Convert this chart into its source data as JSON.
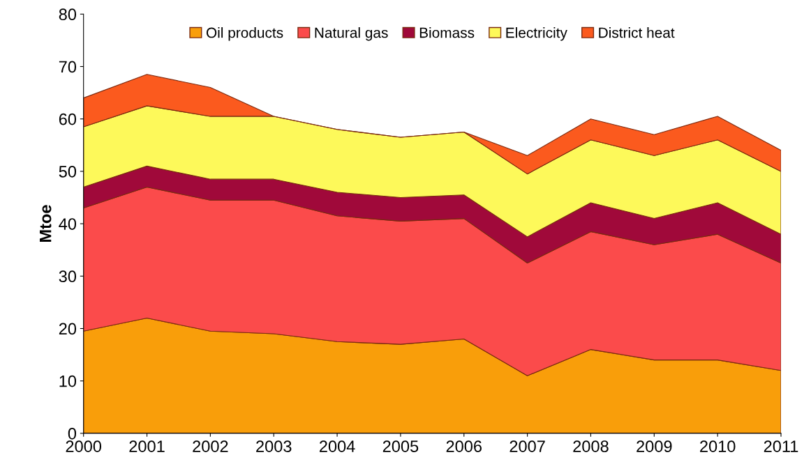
{
  "chart_data": {
    "type": "area",
    "stacked": true,
    "ylabel": "Mtoe",
    "categories": [
      "2000",
      "2001",
      "2002",
      "2003",
      "2004",
      "2005",
      "2006",
      "2007",
      "2008",
      "2009",
      "2010",
      "2011"
    ],
    "series": [
      {
        "name": "Oil products",
        "color": "#f99e0a",
        "values": [
          19.5,
          22,
          19.5,
          19,
          17.5,
          17,
          18,
          11,
          16,
          14,
          14,
          12
        ]
      },
      {
        "name": "Natural gas",
        "color": "#fb4b4b",
        "values": [
          23.5,
          25,
          25,
          25.5,
          24,
          23.5,
          23,
          21.5,
          22.5,
          22,
          24,
          20.5
        ]
      },
      {
        "name": "Biomass",
        "color": "#a0093a",
        "values": [
          4,
          4,
          4,
          4,
          4.5,
          4.5,
          4.5,
          5,
          5.5,
          5,
          6,
          5.5
        ]
      },
      {
        "name": "Electricity",
        "color": "#fdf95a",
        "values": [
          11.5,
          11.5,
          12,
          12,
          12,
          11.5,
          12,
          12,
          12,
          12,
          12,
          12
        ]
      },
      {
        "name": "District heat",
        "color": "#fb5a1e",
        "values": [
          5.5,
          6,
          5.5,
          0,
          0,
          0,
          0,
          3.5,
          4,
          4,
          4.5,
          4
        ]
      }
    ],
    "ylim": [
      0,
      80
    ],
    "yticks": [
      0,
      10,
      20,
      30,
      40,
      50,
      60,
      70,
      80
    ],
    "grid": false,
    "legend": "top"
  }
}
